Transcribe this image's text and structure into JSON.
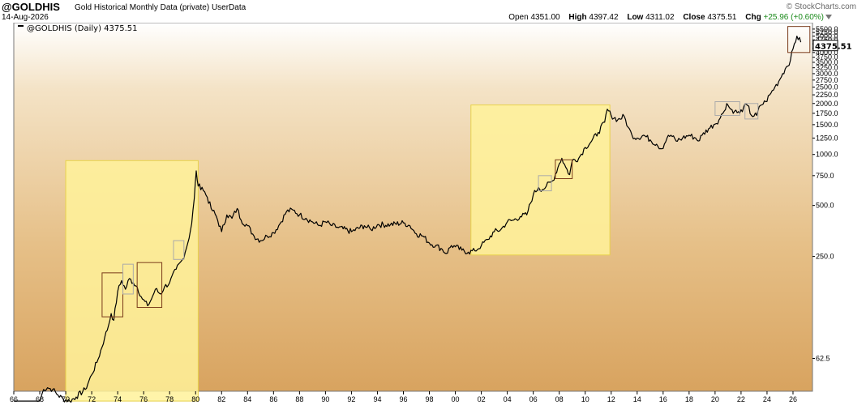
{
  "header": {
    "symbol": "@GOLDHIS",
    "description": "Gold Historical Monthly Data (private)  UserData",
    "date": "14-Aug-2026",
    "brand": "© StockCharts.com",
    "quote": {
      "open_label": "Open",
      "open": "4351.00",
      "high_label": "High",
      "high": "4397.42",
      "low_label": "Low",
      "low": "4311.02",
      "close_label": "Close",
      "close": "4375.51",
      "chg_label": "Chg",
      "chg": "+25.96 (+0.60%)"
    }
  },
  "chart_data": {
    "type": "line",
    "legend": "@GOLDHIS (Daily) 4375.51",
    "last_value": "4375.51",
    "y_scale": "log",
    "ylim": [
      40,
      6000
    ],
    "xlim": [
      1966,
      2027.5
    ],
    "y_ticks": [
      "62.5",
      "250.0",
      "500.0",
      "750.0",
      "1000.0",
      "1250.0",
      "1500.0",
      "1750.0",
      "2000.0",
      "2250.0",
      "2500.0",
      "2750.0",
      "3000.0",
      "3250.0",
      "3500.0",
      "3750.0",
      "4000.0",
      "4250.0",
      "4500.0",
      "4750.0",
      "5000.0",
      "5250.0",
      "5500.0"
    ],
    "x_ticks": [
      "66",
      "68",
      "70",
      "72",
      "74",
      "76",
      "78",
      "80",
      "82",
      "84",
      "86",
      "88",
      "90",
      "92",
      "94",
      "96",
      "98",
      "00",
      "02",
      "04",
      "06",
      "08",
      "10",
      "12",
      "14",
      "16",
      "18",
      "20",
      "22",
      "24",
      "26"
    ],
    "grid": false,
    "background": [
      "#ffffff",
      "#f4e3c6",
      "#e6c088",
      "#d8a35f"
    ],
    "line_color": "#000000",
    "series": [
      {
        "x": [
          1966.0,
          1967.0,
          1968.0,
          1968.3,
          1968.6,
          1969.0,
          1969.4,
          1969.8,
          1970.3,
          1970.8,
          1971.5,
          1972.0,
          1972.5,
          1973.0,
          1973.3,
          1973.5,
          1973.7,
          1974.0,
          1974.3,
          1974.6,
          1974.9,
          1975.2,
          1975.5,
          1975.9,
          1976.3,
          1976.6,
          1976.9,
          1977.3,
          1977.6,
          1978.0,
          1978.5,
          1979.0,
          1979.4,
          1979.7,
          1979.9,
          1980.05,
          1980.2,
          1980.5,
          1980.9,
          1981.2,
          1981.6,
          1982.0,
          1982.4,
          1982.8,
          1983.2,
          1983.5,
          1984.0,
          1984.5,
          1985.0,
          1985.5,
          1986.0,
          1986.5,
          1987.0,
          1987.5,
          1988.0,
          1988.5,
          1989.0,
          1989.5,
          1990.0,
          1990.5,
          1991.0,
          1992.0,
          1993.0,
          1993.5,
          1994.0,
          1995.0,
          1996.0,
          1996.5,
          1997.0,
          1997.5,
          1998.0,
          1998.5,
          1999.0,
          1999.3,
          1999.7,
          2000.0,
          2000.5,
          2001.0,
          2001.5,
          2002.0,
          2002.5,
          2003.0,
          2003.5,
          2004.0,
          2004.5,
          2005.0,
          2005.5,
          2006.0,
          2006.4,
          2006.7,
          2007.0,
          2007.5,
          2008.0,
          2008.2,
          2008.5,
          2008.8,
          2009.0,
          2009.5,
          2010.0,
          2010.5,
          2011.0,
          2011.5,
          2011.7,
          2012.0,
          2012.5,
          2013.0,
          2013.3,
          2013.6,
          2014.0,
          2014.5,
          2015.0,
          2015.5,
          2015.9,
          2016.3,
          2016.6,
          2017.0,
          2017.5,
          2018.0,
          2018.5,
          2018.7,
          2019.0,
          2019.5,
          2019.9,
          2020.3,
          2020.6,
          2020.9,
          2021.2,
          2021.5,
          2021.9,
          2022.2,
          2022.5,
          2022.8,
          2023.2,
          2023.5,
          2023.9,
          2024.3,
          2024.6,
          2024.9,
          2025.2,
          2025.5,
          2025.8,
          2026.0,
          2026.3,
          2026.6
        ],
        "y": [
          35,
          35,
          35,
          41,
          42,
          41,
          38,
          36,
          35,
          37,
          41,
          50,
          62,
          83,
          98,
          115,
          105,
          155,
          180,
          160,
          185,
          175,
          165,
          140,
          128,
          140,
          160,
          150,
          165,
          175,
          210,
          240,
          300,
          390,
          550,
          800,
          650,
          640,
          560,
          480,
          430,
          350,
          440,
          420,
          480,
          410,
          380,
          330,
          310,
          330,
          345,
          390,
          460,
          470,
          440,
          420,
          400,
          380,
          400,
          380,
          370,
          350,
          380,
          360,
          385,
          385,
          395,
          380,
          340,
          330,
          300,
          290,
          275,
          260,
          290,
          285,
          272,
          265,
          270,
          290,
          315,
          350,
          360,
          400,
          410,
          430,
          440,
          580,
          640,
          620,
          650,
          700,
          880,
          950,
          840,
          760,
          920,
          950,
          1100,
          1200,
          1350,
          1550,
          1850,
          1700,
          1600,
          1680,
          1450,
          1300,
          1250,
          1300,
          1220,
          1150,
          1080,
          1250,
          1300,
          1200,
          1250,
          1300,
          1250,
          1200,
          1300,
          1420,
          1500,
          1600,
          1750,
          2000,
          1850,
          1800,
          1750,
          1900,
          1950,
          1700,
          1700,
          1950,
          2050,
          2300,
          2500,
          2700,
          3000,
          3300,
          3600,
          4200,
          5000,
          4600
        ]
      }
    ],
    "annotation_boxes": [
      {
        "x": [
          1970.0,
          1980.2
        ],
        "y": [
          35,
          920
        ],
        "fill": "#fff29a"
      },
      {
        "x": [
          2001.2,
          2011.9
        ],
        "y": [
          255,
          1960
        ],
        "fill": "#fff29a"
      },
      {
        "x": [
          1972.8,
          1974.4
        ],
        "y": [
          110,
          200
        ],
        "stroke": "#7a3a1a"
      },
      {
        "x": [
          1974.4,
          1975.2
        ],
        "y": [
          150,
          225
        ],
        "stroke": "#aaaaaa"
      },
      {
        "x": [
          1975.5,
          1977.4
        ],
        "y": [
          125,
          230
        ],
        "stroke": "#7a3a1a"
      },
      {
        "x": [
          1978.3,
          1979.1
        ],
        "y": [
          240,
          310
        ],
        "stroke": "#aaaaaa"
      },
      {
        "x": [
          2006.4,
          2007.4
        ],
        "y": [
          610,
          750
        ],
        "stroke": "#aaaaaa"
      },
      {
        "x": [
          2007.7,
          2009.0
        ],
        "y": [
          720,
          930
        ],
        "stroke": "#7a3a1a"
      },
      {
        "x": [
          2020.0,
          2021.9
        ],
        "y": [
          1700,
          2050
        ],
        "stroke": "#aaaaaa"
      },
      {
        "x": [
          2022.3,
          2023.3
        ],
        "y": [
          1620,
          2000
        ],
        "stroke": "#aaaaaa"
      },
      {
        "x": [
          2025.6,
          2027.3
        ],
        "y": [
          4000,
          5700
        ],
        "stroke": "#7a3a1a"
      }
    ]
  }
}
